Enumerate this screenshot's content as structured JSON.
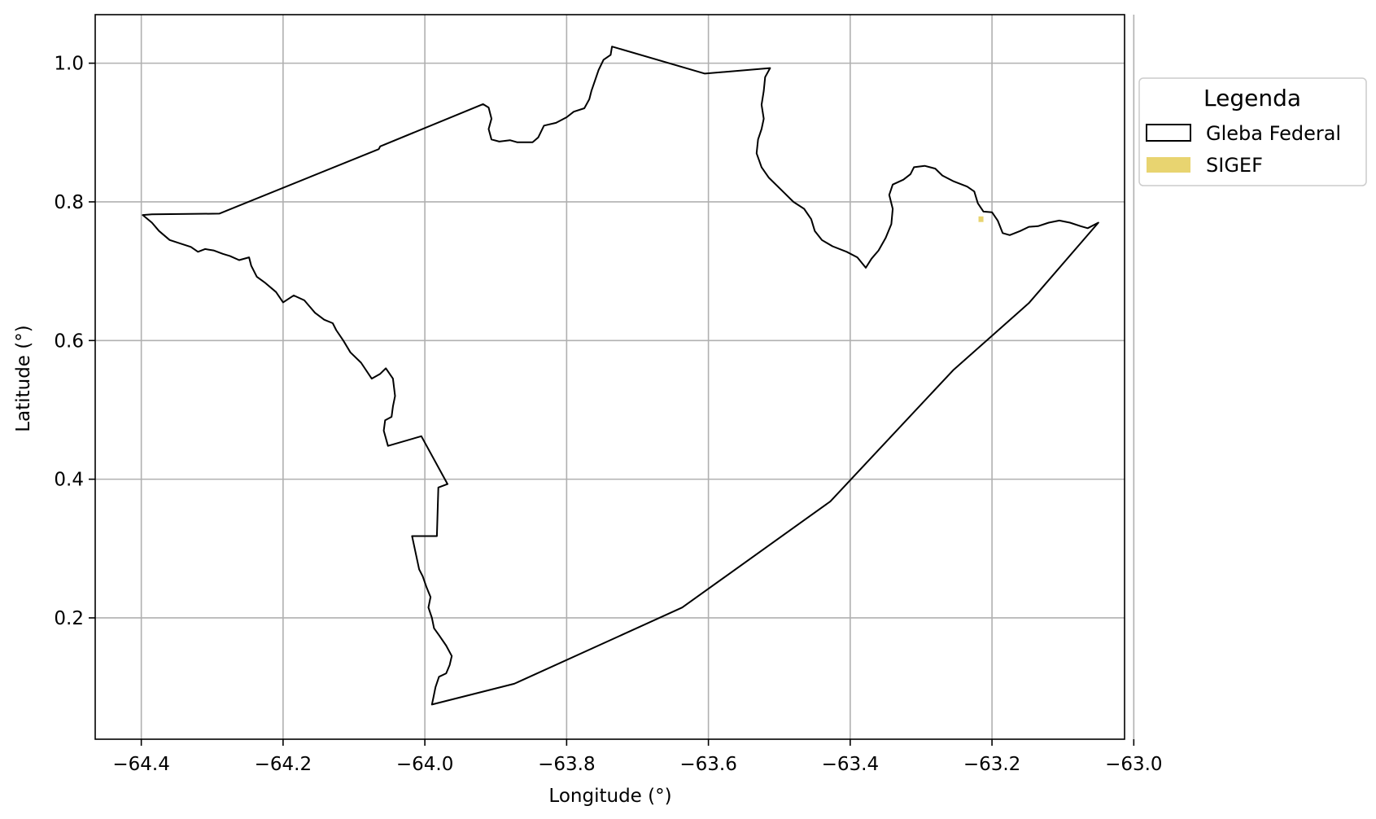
{
  "chart_data": {
    "type": "map",
    "xlabel": "Longitude (°)",
    "ylabel": "Latitude (°)",
    "xlim": [
      -64.465,
      -63.013
    ],
    "ylim": [
      0.025,
      1.07
    ],
    "grid": true,
    "xticks": [
      -64.4,
      -64.2,
      -64.0,
      -63.8,
      -63.6,
      -63.4,
      -63.2,
      -63.0
    ],
    "yticks": [
      0.2,
      0.4,
      0.6,
      0.8,
      1.0
    ],
    "xtick_labels": [
      "−64.4",
      "−64.2",
      "−64.0",
      "−63.8",
      "−63.6",
      "−63.4",
      "−63.2",
      "−63.0"
    ],
    "ytick_labels": [
      "0.2",
      "0.4",
      "0.6",
      "0.8",
      "1.0"
    ],
    "legend": {
      "title": "Legenda",
      "placement": "outside-right-top",
      "entries": [
        {
          "label": "Gleba Federal",
          "style": "outline",
          "color": "#000000"
        },
        {
          "label": "SIGEF",
          "style": "fill",
          "color": "#e8d470"
        }
      ]
    },
    "layers": [
      {
        "name": "Gleba Federal",
        "kind": "polygon",
        "stroke": "#000000",
        "fill": "none",
        "coordinates": [
          [
            -64.398,
            0.781
          ],
          [
            -64.385,
            0.782
          ],
          [
            -64.29,
            0.783
          ],
          [
            -64.065,
            0.876
          ],
          [
            -64.063,
            0.88
          ],
          [
            -63.918,
            0.941
          ],
          [
            -63.91,
            0.936
          ],
          [
            -63.906,
            0.92
          ],
          [
            -63.91,
            0.905
          ],
          [
            -63.906,
            0.89
          ],
          [
            -63.895,
            0.887
          ],
          [
            -63.88,
            0.889
          ],
          [
            -63.87,
            0.886
          ],
          [
            -63.858,
            0.886
          ],
          [
            -63.848,
            0.886
          ],
          [
            -63.84,
            0.893
          ],
          [
            -63.832,
            0.91
          ],
          [
            -63.815,
            0.914
          ],
          [
            -63.8,
            0.922
          ],
          [
            -63.79,
            0.93
          ],
          [
            -63.775,
            0.935
          ],
          [
            -63.768,
            0.948
          ],
          [
            -63.765,
            0.96
          ],
          [
            -63.76,
            0.975
          ],
          [
            -63.755,
            0.99
          ],
          [
            -63.748,
            1.005
          ],
          [
            -63.738,
            1.012
          ],
          [
            -63.736,
            1.024
          ],
          [
            -63.605,
            0.985
          ],
          [
            -63.513,
            0.993
          ],
          [
            -63.52,
            0.98
          ],
          [
            -63.522,
            0.96
          ],
          [
            -63.525,
            0.94
          ],
          [
            -63.522,
            0.92
          ],
          [
            -63.525,
            0.905
          ],
          [
            -63.53,
            0.89
          ],
          [
            -63.532,
            0.87
          ],
          [
            -63.525,
            0.85
          ],
          [
            -63.515,
            0.835
          ],
          [
            -63.495,
            0.815
          ],
          [
            -63.48,
            0.8
          ],
          [
            -63.465,
            0.79
          ],
          [
            -63.455,
            0.775
          ],
          [
            -63.45,
            0.758
          ],
          [
            -63.44,
            0.745
          ],
          [
            -63.425,
            0.736
          ],
          [
            -63.405,
            0.728
          ],
          [
            -63.39,
            0.72
          ],
          [
            -63.378,
            0.705
          ],
          [
            -63.37,
            0.718
          ],
          [
            -63.36,
            0.73
          ],
          [
            -63.35,
            0.748
          ],
          [
            -63.342,
            0.768
          ],
          [
            -63.34,
            0.79
          ],
          [
            -63.345,
            0.81
          ],
          [
            -63.34,
            0.825
          ],
          [
            -63.325,
            0.832
          ],
          [
            -63.315,
            0.84
          ],
          [
            -63.31,
            0.85
          ],
          [
            -63.295,
            0.852
          ],
          [
            -63.28,
            0.848
          ],
          [
            -63.27,
            0.838
          ],
          [
            -63.255,
            0.83
          ],
          [
            -63.235,
            0.822
          ],
          [
            -63.225,
            0.815
          ],
          [
            -63.22,
            0.798
          ],
          [
            -63.212,
            0.786
          ],
          [
            -63.2,
            0.785
          ],
          [
            -63.192,
            0.773
          ],
          [
            -63.185,
            0.755
          ],
          [
            -63.175,
            0.752
          ],
          [
            -63.16,
            0.758
          ],
          [
            -63.148,
            0.764
          ],
          [
            -63.135,
            0.765
          ],
          [
            -63.12,
            0.77
          ],
          [
            -63.105,
            0.773
          ],
          [
            -63.09,
            0.77
          ],
          [
            -63.075,
            0.765
          ],
          [
            -63.065,
            0.762
          ],
          [
            -63.05,
            0.77
          ],
          [
            -63.148,
            0.654
          ],
          [
            -63.255,
            0.557
          ],
          [
            -63.428,
            0.368
          ],
          [
            -63.637,
            0.215
          ],
          [
            -63.874,
            0.105
          ],
          [
            -63.99,
            0.075
          ],
          [
            -63.988,
            0.085
          ],
          [
            -63.985,
            0.1
          ],
          [
            -63.98,
            0.115
          ],
          [
            -63.97,
            0.12
          ],
          [
            -63.965,
            0.132
          ],
          [
            -63.962,
            0.145
          ],
          [
            -63.97,
            0.16
          ],
          [
            -63.98,
            0.175
          ],
          [
            -63.987,
            0.185
          ],
          [
            -63.99,
            0.2
          ],
          [
            -63.995,
            0.215
          ],
          [
            -63.992,
            0.23
          ],
          [
            -63.998,
            0.245
          ],
          [
            -64.003,
            0.26
          ],
          [
            -64.008,
            0.27
          ],
          [
            -64.018,
            0.318
          ],
          [
            -63.983,
            0.318
          ],
          [
            -63.981,
            0.388
          ],
          [
            -63.968,
            0.393
          ],
          [
            -64.005,
            0.462
          ],
          [
            -64.052,
            0.448
          ],
          [
            -64.058,
            0.47
          ],
          [
            -64.056,
            0.485
          ],
          [
            -64.047,
            0.49
          ],
          [
            -64.045,
            0.505
          ],
          [
            -64.042,
            0.52
          ],
          [
            -64.045,
            0.545
          ],
          [
            -64.055,
            0.56
          ],
          [
            -64.063,
            0.552
          ],
          [
            -64.075,
            0.545
          ],
          [
            -64.09,
            0.568
          ],
          [
            -64.105,
            0.583
          ],
          [
            -64.115,
            0.6
          ],
          [
            -64.125,
            0.615
          ],
          [
            -64.13,
            0.625
          ],
          [
            -64.142,
            0.63
          ],
          [
            -64.155,
            0.64
          ],
          [
            -64.17,
            0.658
          ],
          [
            -64.185,
            0.665
          ],
          [
            -64.2,
            0.655
          ],
          [
            -64.21,
            0.67
          ],
          [
            -64.225,
            0.683
          ],
          [
            -64.237,
            0.692
          ],
          [
            -64.245,
            0.708
          ],
          [
            -64.248,
            0.72
          ],
          [
            -64.262,
            0.716
          ],
          [
            -64.275,
            0.722
          ],
          [
            -64.285,
            0.725
          ],
          [
            -64.298,
            0.73
          ],
          [
            -64.31,
            0.732
          ],
          [
            -64.32,
            0.728
          ],
          [
            -64.33,
            0.735
          ],
          [
            -64.345,
            0.74
          ],
          [
            -64.36,
            0.745
          ],
          [
            -64.375,
            0.758
          ],
          [
            -64.385,
            0.77
          ],
          [
            -64.398,
            0.781
          ]
        ]
      },
      {
        "name": "SIGEF",
        "kind": "polygon",
        "stroke": "none",
        "fill": "#e8d470",
        "coordinates": [
          [
            -63.219,
            0.771
          ],
          [
            -63.212,
            0.771
          ],
          [
            -63.212,
            0.779
          ],
          [
            -63.219,
            0.779
          ]
        ]
      }
    ]
  }
}
